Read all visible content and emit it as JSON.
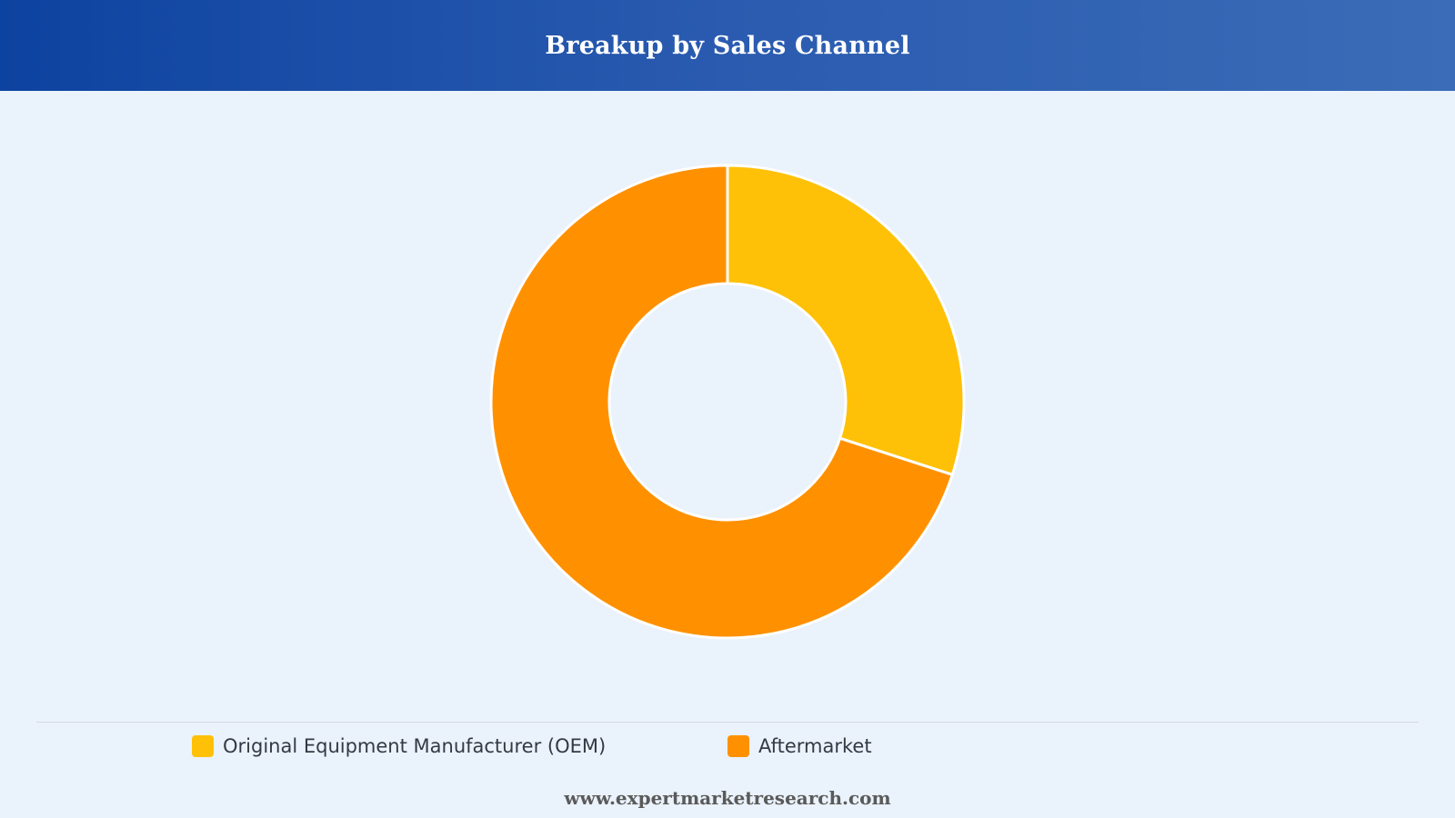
{
  "header": {
    "title": "Breakup by Sales Channel",
    "background_start": "#0d43a0",
    "background_end": "#3a6cb7"
  },
  "chart_data": {
    "type": "pie",
    "variant": "donut",
    "title": "Breakup by Sales Channel",
    "categories": [
      "Original Equipment Manufacturer (OEM)",
      "Aftermarket"
    ],
    "values": [
      30,
      70
    ],
    "unit": "%",
    "colors": [
      "#ffc107",
      "#ff9100"
    ],
    "legend_position": "bottom",
    "slice_border_color": "#ffffff"
  },
  "legend": {
    "items": [
      {
        "label": "Original Equipment Manufacturer (OEM)",
        "color": "#ffc107"
      },
      {
        "label": "Aftermarket",
        "color": "#ff9100"
      }
    ]
  },
  "footer": {
    "text": "www.expertmarketresearch.com"
  }
}
